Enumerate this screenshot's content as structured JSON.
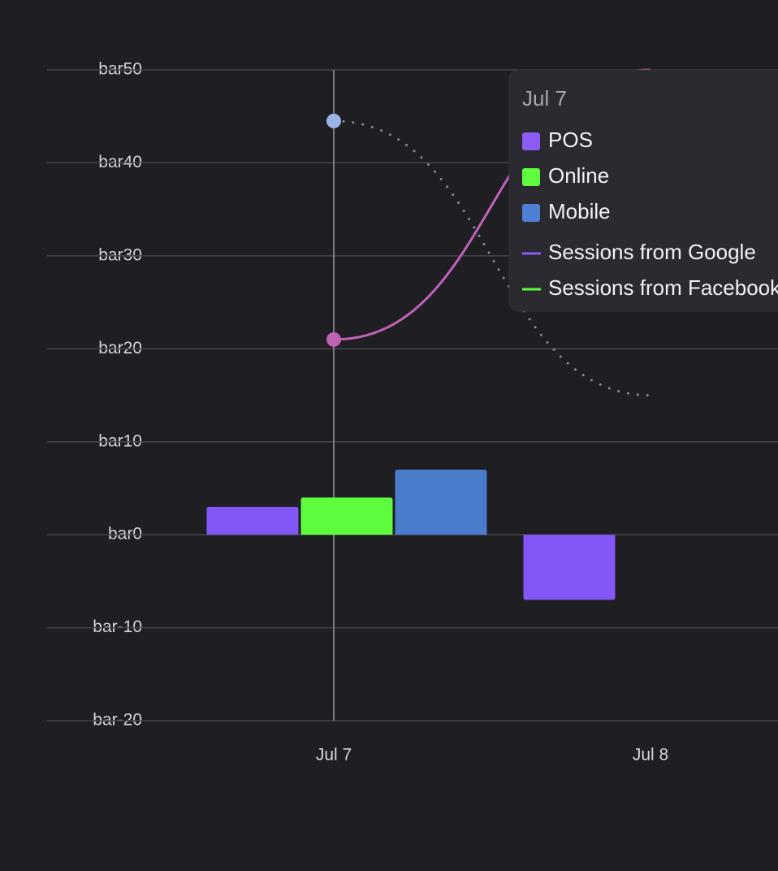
{
  "chart_data": {
    "type": "bar",
    "categories": [
      "Jul 7",
      "Jul 8"
    ],
    "ylim": [
      -20,
      50
    ],
    "yticks": [
      {
        "value": -20,
        "label": "bar-20"
      },
      {
        "value": -10,
        "label": "bar-10"
      },
      {
        "value": 0,
        "label": "bar0"
      },
      {
        "value": 10,
        "label": "bar10"
      },
      {
        "value": 20,
        "label": "bar20"
      },
      {
        "value": 30,
        "label": "bar30"
      },
      {
        "value": 40,
        "label": "bar40"
      },
      {
        "value": 50,
        "label": "bar50"
      }
    ],
    "grid": true,
    "series": [
      {
        "name": "POS",
        "type": "bar",
        "color": "#8257f5",
        "legend_color": "#8b5cf6",
        "values": [
          3,
          -7
        ]
      },
      {
        "name": "Online",
        "type": "bar",
        "color": "#5efc3d",
        "legend_color": "#5ffc3f",
        "values": [
          4,
          null
        ]
      },
      {
        "name": "Mobile",
        "type": "bar",
        "color": "#4a7ccc",
        "legend_color": "#4f80d6",
        "values": [
          7,
          null
        ]
      },
      {
        "name": "Sessions from Google",
        "type": "line",
        "color": "#c062b6",
        "legend_color": "#8b5cf6",
        "dash": "solid",
        "values": [
          21,
          50
        ]
      },
      {
        "name": "Sessions from Facebook",
        "type": "line",
        "color": "#7b8fae",
        "legend_color": "#5ffc3f",
        "dash": "dotted",
        "values": [
          44.5,
          15
        ]
      }
    ]
  }
}
